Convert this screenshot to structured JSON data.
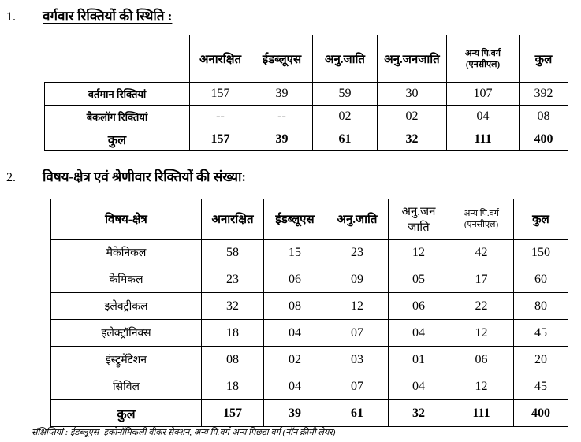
{
  "section1": {
    "number": "1.",
    "title": "वर्गवार रिक्तियों की स्थिति :",
    "headers": [
      "अनारक्षित",
      "ईडब्लूएस",
      "अनु.जाति",
      "अनु.जनजाति",
      "अन्य पि.वर्ग",
      "(एनसीएल)",
      "कुल"
    ],
    "rows": [
      {
        "label": "वर्तमान रिक्तियां",
        "values": [
          "157",
          "39",
          "59",
          "30",
          "107",
          "392"
        ]
      },
      {
        "label": "बैकलॉग रिक्तियां",
        "values": [
          "--",
          "--",
          "02",
          "02",
          "04",
          "08"
        ]
      }
    ],
    "total": {
      "label": "कुल",
      "values": [
        "157",
        "39",
        "61",
        "32",
        "111",
        "400"
      ]
    }
  },
  "section2": {
    "number": "2.",
    "title": "विषय-क्षेत्र एवं श्रेणीवार रिक्तियों की संख्या:",
    "headers": [
      "विषय-क्षेत्र",
      "अनारक्षित",
      "ईडब्लूएस",
      "अनु.जाति",
      "अनु.जन",
      "जाति",
      "अन्य पि.वर्ग",
      "(एनसीएल)",
      "कुल"
    ],
    "rows": [
      {
        "label": "मैकेनिकल",
        "values": [
          "58",
          "15",
          "23",
          "12",
          "42",
          "150"
        ]
      },
      {
        "label": "केमिकल",
        "values": [
          "23",
          "06",
          "09",
          "05",
          "17",
          "60"
        ]
      },
      {
        "label": "इलेक्ट्रीकल",
        "values": [
          "32",
          "08",
          "12",
          "06",
          "22",
          "80"
        ]
      },
      {
        "label": "इलेक्ट्रॉनिक्स",
        "values": [
          "18",
          "04",
          "07",
          "04",
          "12",
          "45"
        ]
      },
      {
        "label": "इंस्ट्रुमेंटेशन",
        "values": [
          "08",
          "02",
          "03",
          "01",
          "06",
          "20"
        ]
      },
      {
        "label": "सिविल",
        "values": [
          "18",
          "04",
          "07",
          "04",
          "12",
          "45"
        ]
      }
    ],
    "total": {
      "label": "कुल",
      "values": [
        "157",
        "39",
        "61",
        "32",
        "111",
        "400"
      ]
    }
  },
  "footnote": "संक्षिप्तियां : ईडब्लूएस- इकोनॉमिकली वीकर सेक्शन, अन्य पि.वर्ग-अन्य पिछड़ा वर्ग (नॉन क्रीमी लेयर)"
}
